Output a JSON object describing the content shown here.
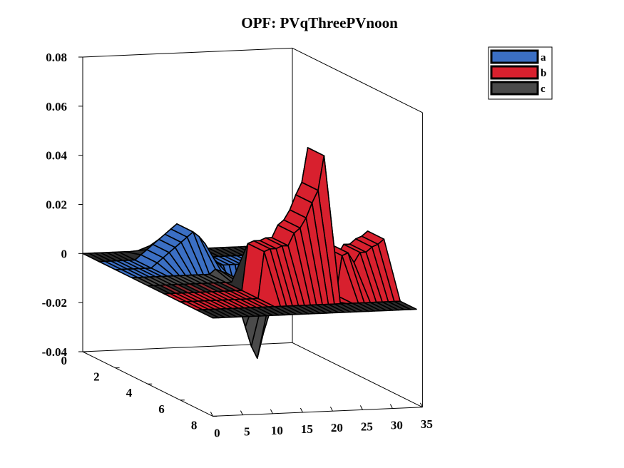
{
  "chart_data": {
    "type": "surface3d",
    "title": "OPF: PVqThreePVnoon",
    "xlabel": "",
    "ylabel": "",
    "zlabel": "",
    "x_ticks": [
      "0",
      "5",
      "10",
      "15",
      "20",
      "25",
      "30",
      "35"
    ],
    "y_ticks": [
      "0",
      "2",
      "4",
      "6",
      "8"
    ],
    "z_ticks": [
      "-0.04",
      "-0.02",
      "0",
      "0.02",
      "0.04",
      "0.06",
      "0.08"
    ],
    "xlim": [
      0,
      35
    ],
    "ylim": [
      0,
      8
    ],
    "zlim": [
      -0.04,
      0.08
    ],
    "legend_position": "top-right",
    "grid": false,
    "x": [
      0,
      1,
      2,
      3,
      4,
      5,
      6,
      7,
      8,
      9,
      10,
      11,
      12,
      13,
      14,
      15,
      16,
      17,
      18,
      19,
      20,
      21,
      22,
      23,
      24,
      25,
      26,
      27,
      28,
      29,
      30,
      31,
      32,
      33,
      34
    ],
    "series": [
      {
        "name": "a",
        "color": "#3b6fc4",
        "rows": [
          1,
          2
        ],
        "values": [
          0,
          0,
          0,
          0,
          0,
          0,
          0,
          0.002,
          0.004,
          0.006,
          0.008,
          0.01,
          0.012,
          0.014,
          0.012,
          0.009,
          0.004,
          0,
          0,
          0,
          0,
          0,
          0,
          0,
          0,
          0,
          0,
          0,
          0,
          0,
          0,
          0,
          0,
          0,
          0
        ]
      },
      {
        "name": "b",
        "color": "#d8202e",
        "rows": [
          5,
          6
        ],
        "values": [
          0,
          0,
          0,
          0,
          0,
          0,
          0,
          0,
          0,
          0,
          0,
          0,
          0,
          0,
          0.019,
          0.02,
          0.02,
          0.021,
          0.021,
          0.026,
          0.028,
          0.032,
          0.038,
          0.043,
          0.057,
          -0.002,
          0,
          0.016,
          0.017,
          0.013,
          0.017,
          0.017,
          0.019,
          0.02,
          0.022
        ]
      },
      {
        "name": "c",
        "color": "#4a4a4a",
        "rows": [
          3
        ],
        "values": [
          0,
          0,
          0,
          0,
          0,
          0,
          0,
          0,
          0,
          0,
          0,
          0,
          0,
          0,
          0.002,
          0.001,
          0,
          -0.006,
          -0.014,
          -0.022,
          -0.03,
          -0.035,
          -0.025,
          -0.01,
          -0.004,
          -0.002,
          -0.004,
          -0.003,
          -0.002,
          0,
          0,
          0,
          0,
          0,
          0
        ]
      }
    ]
  }
}
